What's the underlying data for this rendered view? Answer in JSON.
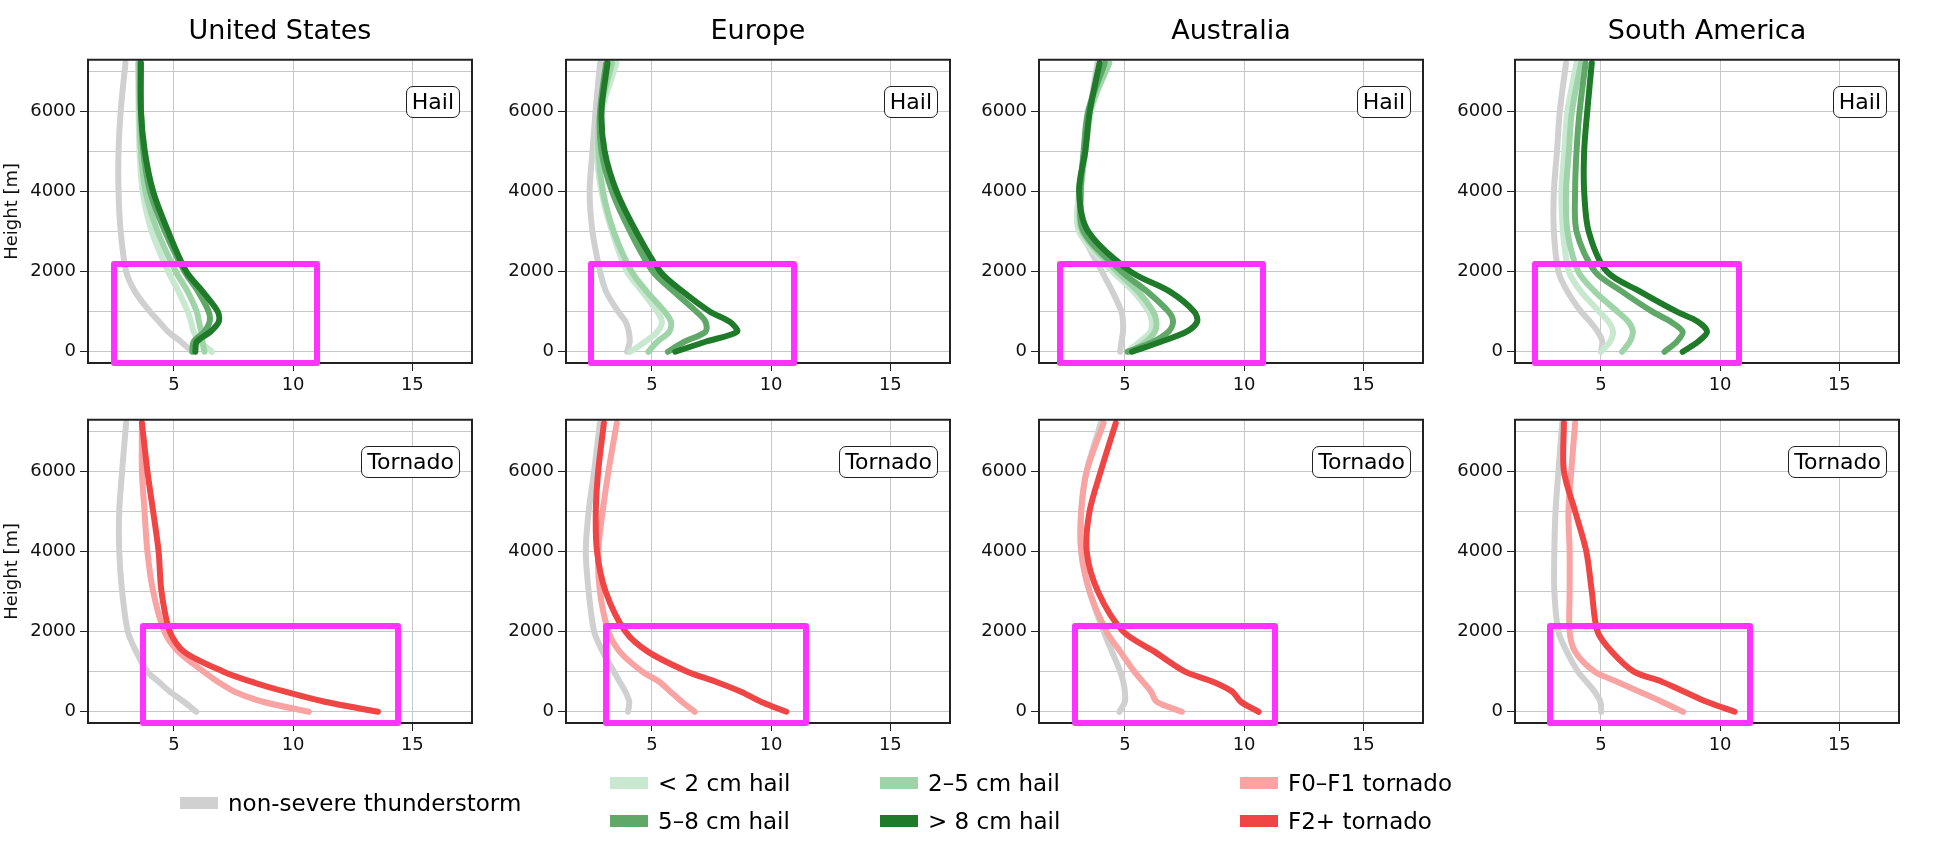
{
  "chart_data": [
    {
      "type": "line",
      "title": "United States",
      "ylabel": "Height [m]",
      "annotations": [
        "Hail"
      ],
      "xlim": [
        1.4,
        17.5
      ],
      "xticks": [
        5,
        10,
        15
      ],
      "ylim": [
        -280,
        7280
      ],
      "yticks": [
        0,
        {
          "value": 1000,
          "label": null
        },
        2000,
        {
          "value": 3000,
          "label": null
        },
        4000,
        {
          "value": 5000,
          "label": null
        },
        6000,
        {
          "value": 7000,
          "label": null
        }
      ],
      "grid": true,
      "legend": "bottom",
      "series": [
        {
          "name": "non-severe thunderstorm",
          "color": "#d0d0d0",
          "x": [
            5.77,
            5.3,
            4.76,
            4.38,
            4.0,
            3.37,
            3.0,
            2.77,
            2.68,
            2.68,
            2.77,
            2.97
          ],
          "values": [
            0,
            250,
            500,
            750,
            1000,
            1500,
            2000,
            3000,
            4000,
            5000,
            6000,
            7200
          ]
        },
        {
          "name": "< 2 cm hail",
          "color": "#c8e8cf",
          "x": [
            6.59,
            6.1,
            5.83,
            5.72,
            5.58,
            5.2,
            4.76,
            4.07,
            3.69,
            3.56,
            3.52,
            3.5
          ],
          "values": [
            0,
            250,
            500,
            750,
            1000,
            1500,
            2000,
            3000,
            4000,
            5000,
            6000,
            7200
          ]
        },
        {
          "name": "2–5 cm hail",
          "color": "#9fd4a8",
          "x": [
            6.28,
            6.2,
            6.15,
            6.05,
            5.96,
            5.58,
            5.08,
            4.32,
            3.81,
            3.62,
            3.56,
            3.52
          ],
          "values": [
            0,
            250,
            500,
            750,
            1000,
            1500,
            2000,
            3000,
            4000,
            5000,
            6000,
            7200
          ]
        },
        {
          "name": "5–8 cm hail",
          "color": "#60a868",
          "x": [
            5.77,
            5.83,
            6.28,
            6.5,
            6.46,
            6.02,
            5.45,
            4.63,
            4.0,
            3.72,
            3.62,
            3.59
          ],
          "values": [
            0,
            250,
            500,
            750,
            1000,
            1500,
            2000,
            3000,
            4000,
            5000,
            6000,
            7200
          ]
        },
        {
          "name": "> 8 cm hail",
          "color": "#1f7a2a",
          "x": [
            5.9,
            5.96,
            6.53,
            6.88,
            6.84,
            6.21,
            5.52,
            4.76,
            4.13,
            3.78,
            3.62,
            3.62
          ],
          "values": [
            0,
            250,
            500,
            750,
            1000,
            1500,
            2000,
            3000,
            4000,
            5000,
            6000,
            7200
          ]
        }
      ]
    },
    {
      "type": "line",
      "title": "Europe",
      "annotations": [
        "Hail"
      ],
      "xlim": [
        1.4,
        17.5
      ],
      "xticks": [
        5,
        10,
        15
      ],
      "ylim": [
        -280,
        7280
      ],
      "yticks": [
        0,
        {
          "value": 1000,
          "label": null
        },
        2000,
        {
          "value": 3000,
          "label": null
        },
        4000,
        {
          "value": 5000,
          "label": null
        },
        6000,
        {
          "value": 7000,
          "label": null
        }
      ],
      "grid": true,
      "legend": "bottom",
      "series": [
        {
          "name": "non-severe thunderstorm",
          "color": "#d0d0d0",
          "x": [
            3.96,
            4.07,
            4.03,
            3.9,
            3.59,
            3.08,
            2.83,
            2.51,
            2.39,
            2.51,
            2.64,
            2.83
          ],
          "values": [
            0,
            250,
            500,
            750,
            1000,
            1500,
            2000,
            3000,
            4000,
            5000,
            6000,
            7200
          ]
        },
        {
          "name": "< 2 cm hail",
          "color": "#c8e8cf",
          "x": [
            4.09,
            4.72,
            5.23,
            5.42,
            5.23,
            4.6,
            3.96,
            3.33,
            2.89,
            2.7,
            2.89,
            3.52
          ],
          "values": [
            0,
            250,
            500,
            750,
            1000,
            1500,
            2000,
            3000,
            4000,
            5000,
            6000,
            7200
          ]
        },
        {
          "name": "2–5 cm hail",
          "color": "#9fd4a8",
          "x": [
            4.85,
            5.23,
            5.73,
            5.8,
            5.54,
            4.79,
            4.15,
            3.4,
            2.95,
            2.76,
            2.83,
            3.33
          ],
          "values": [
            0,
            250,
            500,
            750,
            1000,
            1500,
            2000,
            3000,
            4000,
            5000,
            6000,
            7200
          ]
        },
        {
          "name": "5–8 cm hail",
          "color": "#60a868",
          "x": [
            5.67,
            6.36,
            7.25,
            7.25,
            6.87,
            5.92,
            5.04,
            4.09,
            3.33,
            2.89,
            2.83,
            3.08
          ],
          "values": [
            0,
            250,
            500,
            750,
            1000,
            1500,
            2000,
            3000,
            4000,
            5000,
            6000,
            7200
          ]
        },
        {
          "name": "> 8 cm hail",
          "color": "#1f7a2a",
          "x": [
            5.98,
            7.25,
            8.57,
            8.26,
            7.44,
            6.3,
            5.35,
            4.34,
            3.52,
            3.02,
            2.89,
            3.14
          ],
          "values": [
            0,
            250,
            500,
            750,
            1000,
            1500,
            2000,
            3000,
            4000,
            5000,
            6000,
            7200
          ]
        }
      ]
    },
    {
      "type": "line",
      "title": "Australia",
      "annotations": [
        "Hail"
      ],
      "xlim": [
        1.4,
        17.5
      ],
      "xticks": [
        5,
        10,
        15
      ],
      "ylim": [
        -280,
        7280
      ],
      "yticks": [
        0,
        {
          "value": 1000,
          "label": null
        },
        2000,
        {
          "value": 3000,
          "label": null
        },
        4000,
        {
          "value": 5000,
          "label": null
        },
        6000,
        {
          "value": 7000,
          "label": null
        }
      ],
      "grid": true,
      "legend": "bottom",
      "series": [
        {
          "name": "non-severe thunderstorm",
          "color": "#d0d0d0",
          "x": [
            4.8,
            4.86,
            4.92,
            4.92,
            4.86,
            4.48,
            4.04,
            3.21,
            3.15,
            3.34,
            3.53,
            3.85
          ],
          "values": [
            0,
            250,
            500,
            750,
            1000,
            1500,
            2000,
            3000,
            4000,
            5000,
            6000,
            7200
          ]
        },
        {
          "name": "< 2 cm hail",
          "color": "#c8e8cf",
          "x": [
            5.11,
            5.62,
            6.07,
            6.13,
            6.0,
            5.37,
            4.48,
            3.08,
            3.08,
            3.34,
            3.59,
            4.23
          ],
          "values": [
            0,
            250,
            500,
            750,
            1000,
            1500,
            2000,
            3000,
            4000,
            5000,
            6000,
            7200
          ]
        },
        {
          "name": "2–5 cm hail",
          "color": "#9fd4a8",
          "x": [
            5.24,
            5.88,
            6.26,
            6.32,
            6.19,
            5.56,
            4.67,
            3.21,
            3.15,
            3.34,
            3.53,
            4.35
          ],
          "values": [
            0,
            250,
            500,
            750,
            1000,
            1500,
            2000,
            3000,
            4000,
            5000,
            6000,
            7200
          ]
        },
        {
          "name": "5–8 cm hail",
          "color": "#60a868",
          "x": [
            5.11,
            6.19,
            6.83,
            7.02,
            6.83,
            5.94,
            4.86,
            3.27,
            3.15,
            3.27,
            3.46,
            4.16
          ],
          "values": [
            0,
            250,
            500,
            750,
            1000,
            1500,
            2000,
            3000,
            4000,
            5000,
            6000,
            7200
          ]
        },
        {
          "name": "> 8 cm hail",
          "color": "#1f7a2a",
          "x": [
            5.3,
            6.51,
            7.59,
            8.03,
            7.91,
            6.89,
            5.24,
            3.46,
            3.08,
            3.34,
            3.53,
            3.94
          ],
          "values": [
            0,
            250,
            500,
            750,
            1000,
            1500,
            2000,
            3000,
            4000,
            5000,
            6000,
            7200
          ]
        }
      ]
    },
    {
      "type": "line",
      "title": "South America",
      "annotations": [
        "Hail"
      ],
      "xlim": [
        1.4,
        17.5
      ],
      "xticks": [
        5,
        10,
        15
      ],
      "ylim": [
        -280,
        7280
      ],
      "yticks": [
        0,
        {
          "value": 1000,
          "label": null
        },
        2000,
        {
          "value": 3000,
          "label": null
        },
        4000,
        {
          "value": 5000,
          "label": null
        },
        6000,
        {
          "value": 7000,
          "label": null
        }
      ],
      "grid": true,
      "legend": "bottom",
      "series": [
        {
          "name": "non-severe thunderstorm",
          "color": "#d0d0d0",
          "x": [
            5.0,
            5.06,
            4.87,
            4.55,
            4.17,
            3.6,
            3.22,
            3.03,
            3.03,
            3.16,
            3.28,
            3.54
          ],
          "values": [
            0,
            250,
            500,
            750,
            1000,
            1500,
            2000,
            3000,
            4000,
            5000,
            6000,
            7200
          ]
        },
        {
          "name": "< 2 cm hail",
          "color": "#c8e8cf",
          "x": [
            5.0,
            5.38,
            5.51,
            5.32,
            4.94,
            4.17,
            3.66,
            3.41,
            3.35,
            3.47,
            3.6,
            3.98
          ],
          "values": [
            0,
            250,
            500,
            750,
            1000,
            1500,
            2000,
            3000,
            4000,
            5000,
            6000,
            7200
          ]
        },
        {
          "name": "2–5 cm hail",
          "color": "#9fd4a8",
          "x": [
            5.89,
            6.21,
            6.34,
            6.15,
            5.7,
            4.75,
            4.05,
            3.6,
            3.54,
            3.66,
            3.79,
            4.17
          ],
          "values": [
            0,
            250,
            500,
            750,
            1000,
            1500,
            2000,
            3000,
            4000,
            5000,
            6000,
            7200
          ]
        },
        {
          "name": "5–8 cm hail",
          "color": "#60a868",
          "x": [
            7.67,
            8.18,
            8.43,
            7.93,
            7.16,
            5.89,
            4.75,
            3.98,
            3.92,
            3.98,
            4.11,
            4.36
          ],
          "values": [
            0,
            250,
            500,
            750,
            1000,
            1500,
            2000,
            3000,
            4000,
            5000,
            6000,
            7200
          ]
        },
        {
          "name": "> 8 cm hail",
          "color": "#1f7a2a",
          "x": [
            8.43,
            9.07,
            9.45,
            9.07,
            8.18,
            6.65,
            5.25,
            4.49,
            4.3,
            4.3,
            4.43,
            4.62
          ],
          "values": [
            0,
            250,
            500,
            750,
            1000,
            1500,
            2000,
            3000,
            4000,
            5000,
            6000,
            7200
          ]
        }
      ]
    },
    {
      "type": "line",
      "ylabel": "Height [m]",
      "annotations": [
        "Tornado"
      ],
      "xlim": [
        1.4,
        17.5
      ],
      "xticks": [
        5,
        10,
        15
      ],
      "ylim": [
        -280,
        7280
      ],
      "yticks": [
        0,
        {
          "value": 1000,
          "label": null
        },
        2000,
        {
          "value": 3000,
          "label": null
        },
        4000,
        {
          "value": 5000,
          "label": null
        },
        6000,
        {
          "value": 7000,
          "label": null
        }
      ],
      "grid": true,
      "legend": "bottom",
      "series": [
        {
          "name": "non-severe thunderstorm",
          "color": "#d0d0d0",
          "x": [
            5.94,
            5.42,
            4.83,
            4.36,
            3.89,
            3.42,
            3.07,
            2.83,
            2.71,
            2.71,
            2.83,
            3.0
          ],
          "values": [
            0,
            250,
            500,
            750,
            1000,
            1500,
            2000,
            3000,
            4000,
            5000,
            6000,
            7200
          ]
        },
        {
          "name": "F0–F1 tornado",
          "color": "#f9a3a3",
          "x": [
            10.66,
            8.73,
            7.55,
            6.84,
            6.25,
            5.19,
            4.6,
            4.13,
            3.89,
            3.77,
            3.66,
            3.66
          ],
          "values": [
            0,
            250,
            500,
            750,
            1000,
            1500,
            2000,
            3000,
            4000,
            5000,
            6000,
            7200
          ]
        },
        {
          "name": "F2+ tornado",
          "color": "#f04545",
          "x": [
            13.56,
            11.32,
            9.67,
            8.25,
            7.08,
            5.42,
            4.83,
            4.48,
            4.36,
            4.13,
            3.89,
            3.66
          ],
          "values": [
            0,
            250,
            500,
            750,
            1000,
            1500,
            2000,
            3000,
            4000,
            5000,
            6000,
            7200
          ]
        }
      ]
    },
    {
      "type": "line",
      "annotations": [
        "Tornado"
      ],
      "xlim": [
        1.4,
        17.5
      ],
      "xticks": [
        5,
        10,
        15
      ],
      "ylim": [
        -280,
        7280
      ],
      "yticks": [
        0,
        {
          "value": 1000,
          "label": null
        },
        2000,
        {
          "value": 3000,
          "label": null
        },
        4000,
        {
          "value": 5000,
          "label": null
        },
        6000,
        {
          "value": 7000,
          "label": null
        }
      ],
      "grid": true,
      "legend": "bottom",
      "series": [
        {
          "name": "non-severe thunderstorm",
          "color": "#d0d0d0",
          "x": [
            4.0,
            4.05,
            3.89,
            3.65,
            3.41,
            2.94,
            2.58,
            2.35,
            2.23,
            2.35,
            2.58,
            2.82
          ],
          "values": [
            0,
            250,
            500,
            750,
            1000,
            1500,
            2000,
            3000,
            4000,
            5000,
            6000,
            7200
          ]
        },
        {
          "name": "F0–F1 tornado",
          "color": "#f9a3a3",
          "x": [
            6.8,
            6.26,
            5.78,
            5.31,
            4.6,
            3.65,
            3.18,
            2.82,
            2.75,
            2.94,
            3.18,
            3.53
          ],
          "values": [
            0,
            250,
            500,
            750,
            1000,
            1500,
            2000,
            3000,
            4000,
            5000,
            6000,
            7200
          ]
        },
        {
          "name": "F2+ tornado",
          "color": "#f04545",
          "x": [
            10.64,
            9.57,
            8.74,
            7.68,
            6.49,
            4.83,
            3.89,
            3.06,
            2.7,
            2.65,
            2.75,
            2.99
          ],
          "values": [
            0,
            250,
            500,
            750,
            1000,
            1500,
            2000,
            3000,
            4000,
            5000,
            6000,
            7200
          ]
        }
      ]
    },
    {
      "type": "line",
      "annotations": [
        "Tornado"
      ],
      "xlim": [
        1.4,
        17.5
      ],
      "xticks": [
        5,
        10,
        15
      ],
      "ylim": [
        -280,
        7280
      ],
      "yticks": [
        0,
        {
          "value": 1000,
          "label": null
        },
        2000,
        {
          "value": 3000,
          "label": null
        },
        4000,
        {
          "value": 5000,
          "label": null
        },
        6000,
        {
          "value": 7000,
          "label": null
        }
      ],
      "grid": true,
      "legend": "bottom",
      "series": [
        {
          "name": "non-severe thunderstorm",
          "color": "#d0d0d0",
          "x": [
            4.77,
            5.0,
            5.0,
            4.93,
            4.81,
            4.46,
            4.11,
            3.52,
            3.17,
            3.17,
            3.4,
            3.99
          ],
          "values": [
            0,
            250,
            500,
            750,
            1000,
            1500,
            2000,
            3000,
            4000,
            5000,
            6000,
            7200
          ]
        },
        {
          "name": "F0–F1 tornado",
          "color": "#f9a3a3",
          "x": [
            7.39,
            6.34,
            6.1,
            5.75,
            5.4,
            4.81,
            4.23,
            3.52,
            3.17,
            3.17,
            3.4,
            4.11
          ],
          "values": [
            0,
            250,
            500,
            750,
            1000,
            1500,
            2000,
            3000,
            4000,
            5000,
            6000,
            7200
          ]
        },
        {
          "name": "F2+ tornado",
          "color": "#f04545",
          "x": [
            10.61,
            9.86,
            9.51,
            8.69,
            7.52,
            6.24,
            4.93,
            3.87,
            3.4,
            3.52,
            3.99,
            4.62
          ],
          "values": [
            0,
            250,
            500,
            750,
            1000,
            1500,
            2000,
            3000,
            4000,
            5000,
            6000,
            7200
          ]
        }
      ]
    },
    {
      "type": "line",
      "annotations": [
        "Tornado"
      ],
      "xlim": [
        1.4,
        17.5
      ],
      "xticks": [
        5,
        10,
        15
      ],
      "ylim": [
        -280,
        7280
      ],
      "yticks": [
        0,
        {
          "value": 1000,
          "label": null
        },
        2000,
        {
          "value": 3000,
          "label": null
        },
        4000,
        {
          "value": 5000,
          "label": null
        },
        6000,
        {
          "value": 7000,
          "label": null
        }
      ],
      "grid": true,
      "legend": "bottom",
      "series": [
        {
          "name": "non-severe thunderstorm",
          "color": "#d0d0d0",
          "x": [
            5.02,
            4.98,
            4.74,
            4.39,
            4.04,
            3.57,
            3.22,
            3.05,
            3.05,
            3.1,
            3.22,
            3.38
          ],
          "values": [
            0,
            250,
            500,
            750,
            1000,
            1500,
            2000,
            3000,
            4000,
            5000,
            6000,
            7200
          ]
        },
        {
          "name": "F0–F1 tornado",
          "color": "#f9a3a3",
          "x": [
            8.45,
            7.56,
            6.62,
            5.68,
            4.74,
            3.92,
            3.69,
            3.69,
            3.69,
            3.64,
            3.76,
            3.92
          ],
          "values": [
            0,
            250,
            500,
            750,
            1000,
            1500,
            2000,
            3000,
            4000,
            5000,
            6000,
            7200
          ]
        },
        {
          "name": "F2+ tornado",
          "color": "#f04545",
          "x": [
            10.61,
            9.44,
            8.5,
            7.56,
            6.38,
            5.45,
            4.86,
            4.62,
            4.39,
            3.92,
            3.45,
            3.45
          ],
          "values": [
            0,
            250,
            500,
            750,
            1000,
            1500,
            2000,
            3000,
            4000,
            5000,
            6000,
            7200
          ]
        }
      ]
    }
  ]
}
